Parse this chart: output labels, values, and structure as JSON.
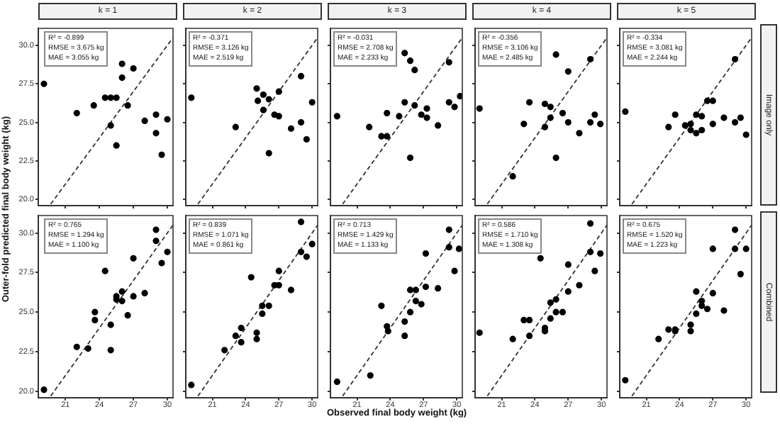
{
  "chart_data": [
    {
      "type": "scatter",
      "title": "k = 1",
      "xlim": [
        18.6,
        30.5
      ],
      "ylim": [
        19.6,
        31.1
      ],
      "xticks": [
        21,
        24,
        27,
        30
      ],
      "yticks": [
        {
          "value": 20,
          "label": "20.0"
        },
        22.5,
        {
          "value": 25,
          "label": "25.0"
        },
        27.5,
        {
          "value": 30,
          "label": "30.0"
        }
      ],
      "tick_labels": "y",
      "annotations": [
        "R² = -0.899",
        "RMSE = 3.675 kg",
        "MAE = 3.055 kg"
      ],
      "series": [
        {
          "type": "scatter",
          "marker": "circle",
          "color": "#000000",
          "x": [
            19.1,
            22.0,
            23.5,
            24.5,
            25.0,
            25.5,
            25.0,
            25.5,
            26.0,
            26.0,
            26.5,
            27.0,
            28.0,
            29.0,
            29.0,
            29.5,
            30.0
          ],
          "values": [
            27.5,
            25.6,
            26.1,
            26.6,
            26.6,
            26.6,
            24.8,
            23.5,
            27.9,
            28.8,
            26.1,
            28.5,
            25.1,
            25.5,
            24.3,
            22.9,
            25.2
          ]
        },
        {
          "type": "line",
          "color": "#333333",
          "line_style": "dashed",
          "x": [
            19.7,
            30.5
          ],
          "values": [
            19.7,
            30.5
          ]
        }
      ]
    },
    {
      "type": "scatter",
      "title": "k = 2",
      "xlim": [
        18.6,
        30.5
      ],
      "ylim": [
        19.6,
        31.1
      ],
      "xticks": [
        21,
        24,
        27,
        30
      ],
      "yticks": [
        20,
        22.5,
        25,
        27.5,
        30
      ],
      "tick_labels": false,
      "annotations": [
        "R² = -0.371",
        "RMSE = 3.126 kg",
        "MAE = 2.519 kg"
      ],
      "series": [
        {
          "type": "scatter",
          "marker": "circle",
          "color": "#000000",
          "x": [
            19.1,
            23.1,
            25.0,
            25.1,
            25.6,
            25.6,
            26.1,
            26.1,
            26.6,
            27.0,
            27.0,
            28.1,
            29.0,
            29.0,
            29.5,
            30.0
          ],
          "values": [
            26.6,
            24.7,
            27.2,
            26.4,
            26.8,
            25.8,
            26.5,
            23.0,
            25.5,
            27.0,
            25.4,
            24.6,
            28.0,
            25.0,
            23.9,
            26.3
          ]
        },
        {
          "type": "line",
          "color": "#333333",
          "line_style": "dashed",
          "x": [
            19.7,
            30.5
          ],
          "values": [
            19.7,
            30.5
          ]
        }
      ]
    },
    {
      "type": "scatter",
      "title": "k = 3",
      "xlim": [
        18.6,
        30.5
      ],
      "ylim": [
        19.6,
        31.1
      ],
      "xticks": [
        21,
        24,
        27,
        30
      ],
      "yticks": [
        20,
        22.5,
        25,
        27.5,
        30
      ],
      "tick_labels": false,
      "annotations": [
        "R² = -0.031",
        "RMSE = 2.708 kg",
        "MAE = 2.233 kg"
      ],
      "series": [
        {
          "type": "scatter",
          "marker": "circle",
          "color": "#000000",
          "x": [
            19.2,
            22.1,
            23.2,
            23.7,
            23.7,
            24.8,
            25.3,
            25.3,
            25.8,
            25.8,
            26.2,
            26.2,
            26.8,
            27.3,
            27.3,
            28.3,
            29.3,
            29.3,
            29.8,
            30.3
          ],
          "values": [
            25.4,
            24.7,
            24.1,
            24.1,
            25.6,
            25.4,
            26.3,
            29.5,
            29.0,
            22.7,
            28.4,
            26.1,
            25.5,
            25.9,
            25.3,
            24.8,
            28.9,
            26.3,
            26.0,
            26.7
          ]
        },
        {
          "type": "line",
          "color": "#333333",
          "line_style": "dashed",
          "x": [
            19.7,
            30.5
          ],
          "values": [
            19.7,
            30.5
          ]
        }
      ]
    },
    {
      "type": "scatter",
      "title": "k = 4",
      "xlim": [
        18.6,
        30.5
      ],
      "ylim": [
        19.6,
        31.1
      ],
      "xticks": [
        21,
        24,
        27,
        30
      ],
      "yticks": [
        20,
        22.5,
        25,
        27.5,
        30
      ],
      "tick_labels": false,
      "annotations": [
        "R² = -0.356",
        "RMSE = 3.106 kg",
        "MAE = 2.485 kg"
      ],
      "series": [
        {
          "type": "scatter",
          "marker": "circle",
          "color": "#000000",
          "x": [
            19.0,
            22.0,
            23.0,
            23.5,
            24.9,
            24.9,
            25.4,
            25.4,
            25.9,
            25.9,
            26.5,
            27.0,
            27.0,
            28.0,
            29.0,
            29.0,
            29.4,
            29.9
          ],
          "values": [
            25.9,
            21.5,
            24.9,
            26.3,
            26.2,
            24.7,
            26.0,
            25.3,
            29.4,
            22.7,
            25.6,
            28.3,
            25.0,
            24.3,
            25.0,
            29.1,
            25.5,
            24.9
          ]
        },
        {
          "type": "line",
          "color": "#333333",
          "line_style": "dashed",
          "x": [
            19.7,
            30.5
          ],
          "values": [
            19.7,
            30.5
          ]
        }
      ]
    },
    {
      "type": "scatter",
      "title": "k = 5",
      "xlim": [
        18.6,
        30.5
      ],
      "ylim": [
        19.6,
        31.1
      ],
      "xticks": [
        21,
        24,
        27,
        30
      ],
      "yticks": [
        20,
        22.5,
        25,
        27.5,
        30
      ],
      "tick_labels": false,
      "annotations": [
        "R² = -0.334",
        "RMSE = 3.081 kg",
        "MAE = 2.244 kg",
        "Image only"
      ],
      "series": [
        {
          "type": "scatter",
          "marker": "circle",
          "color": "#000000",
          "x": [
            19.1,
            23.0,
            23.6,
            24.5,
            25.0,
            25.0,
            25.5,
            25.5,
            26.0,
            26.0,
            26.5,
            27.0,
            27.0,
            28.0,
            29.0,
            29.0,
            29.5,
            30.0
          ],
          "values": [
            25.7,
            24.7,
            25.5,
            24.8,
            24.9,
            24.5,
            25.5,
            24.3,
            25.4,
            24.5,
            26.4,
            26.4,
            24.9,
            25.3,
            25.0,
            29.1,
            25.3,
            24.2
          ]
        },
        {
          "type": "line",
          "color": "#333333",
          "line_style": "dashed",
          "x": [
            19.7,
            30.5
          ],
          "values": [
            19.7,
            30.5
          ]
        }
      ]
    },
    {
      "type": "scatter",
      "xlim": [
        18.6,
        30.5
      ],
      "ylim": [
        19.6,
        31.1
      ],
      "xticks": [
        21,
        24,
        27,
        30
      ],
      "yticks": [
        {
          "value": 20,
          "label": "20.0"
        },
        22.5,
        {
          "value": 25,
          "label": "25.0"
        },
        27.5,
        {
          "value": 30,
          "label": "30.0"
        }
      ],
      "ylabel": "Outer-fold predicted final body weight (kg)",
      "annotations": [
        "R² = 0.765",
        "RMSE = 1.294 kg",
        "MAE = 1.100 kg"
      ],
      "series": [
        {
          "type": "scatter",
          "marker": "circle",
          "color": "#000000",
          "x": [
            19.1,
            22.0,
            23.0,
            23.6,
            23.6,
            24.5,
            25.0,
            25.0,
            25.5,
            25.5,
            26.0,
            26.0,
            26.5,
            27.0,
            27.0,
            28.0,
            29.0,
            29.0,
            29.5,
            30.0
          ],
          "values": [
            20.1,
            22.8,
            22.7,
            24.5,
            25.0,
            27.6,
            24.2,
            22.6,
            26.0,
            25.8,
            25.7,
            26.3,
            24.8,
            28.4,
            26.0,
            26.2,
            30.2,
            29.5,
            28.1,
            28.8
          ]
        },
        {
          "type": "line",
          "color": "#333333",
          "line_style": "dashed",
          "x": [
            19.7,
            30.5
          ],
          "values": [
            19.7,
            30.5
          ]
        }
      ]
    },
    {
      "type": "scatter",
      "xlim": [
        18.6,
        30.5
      ],
      "ylim": [
        19.6,
        31.1
      ],
      "xticks": [
        21,
        24,
        27,
        30
      ],
      "yticks": [
        20,
        22.5,
        25,
        27.5,
        30
      ],
      "tick_labels": "x",
      "annotations": [
        "R² = 0.839",
        "RMSE = 1.071 kg",
        "MAE = 0.861 kg"
      ],
      "series": [
        {
          "type": "scatter",
          "marker": "circle",
          "color": "#000000",
          "x": [
            19.1,
            22.1,
            23.1,
            23.6,
            23.6,
            24.5,
            25.0,
            25.0,
            25.5,
            25.5,
            26.1,
            26.6,
            27.0,
            27.0,
            28.1,
            29.0,
            29.0,
            29.5,
            30.0
          ],
          "values": [
            20.4,
            22.6,
            23.5,
            24.0,
            23.1,
            27.2,
            23.7,
            23.3,
            24.9,
            25.4,
            25.4,
            26.7,
            27.6,
            26.7,
            26.4,
            30.7,
            28.8,
            28.5,
            29.3
          ]
        },
        {
          "type": "line",
          "color": "#333333",
          "line_style": "dashed",
          "x": [
            19.7,
            30.5
          ],
          "values": [
            19.7,
            30.5
          ]
        }
      ]
    },
    {
      "type": "scatter",
      "xlim": [
        18.6,
        30.5
      ],
      "ylim": [
        19.6,
        31.1
      ],
      "xticks": [
        21,
        24,
        27,
        30
      ],
      "yticks": [
        20,
        22.5,
        25,
        27.5,
        30
      ],
      "tick_labels": "x",
      "xlabel": "Observed final body weight (kg)",
      "annotations": [
        "R² = 0.713",
        "RMSE = 1.429 kg",
        "MAE = 1.133 kg"
      ],
      "series": [
        {
          "type": "scatter",
          "marker": "circle",
          "color": "#000000",
          "x": [
            19.2,
            22.2,
            23.2,
            23.7,
            23.8,
            25.3,
            25.3,
            25.8,
            25.8,
            26.3,
            26.3,
            26.8,
            27.2,
            27.2,
            28.3,
            29.3,
            29.3,
            29.8,
            30.2
          ],
          "values": [
            20.6,
            21.0,
            25.4,
            24.1,
            23.8,
            24.4,
            23.5,
            25.0,
            26.4,
            26.4,
            25.7,
            25.5,
            28.7,
            26.6,
            26.5,
            30.2,
            29.1,
            27.6,
            29.0
          ]
        },
        {
          "type": "line",
          "color": "#333333",
          "line_style": "dashed",
          "x": [
            19.7,
            30.5
          ],
          "values": [
            19.7,
            30.5
          ]
        }
      ]
    },
    {
      "type": "scatter",
      "xlim": [
        18.6,
        30.5
      ],
      "ylim": [
        19.6,
        31.1
      ],
      "xticks": [
        21,
        24,
        27,
        30
      ],
      "yticks": [
        20,
        22.5,
        25,
        27.5,
        30
      ],
      "tick_labels": "x",
      "annotations": [
        "R² = 0.586",
        "RMSE = 1.710 kg",
        "MAE = 1.308 kg"
      ],
      "series": [
        {
          "type": "scatter",
          "marker": "circle",
          "color": "#000000",
          "x": [
            19.0,
            22.0,
            23.0,
            23.5,
            23.5,
            24.5,
            24.9,
            24.9,
            25.4,
            25.4,
            25.9,
            25.9,
            26.5,
            27.0,
            27.0,
            28.0,
            29.0,
            29.0,
            29.4,
            29.9
          ],
          "values": [
            23.7,
            23.3,
            24.5,
            24.5,
            23.5,
            28.4,
            24.0,
            23.8,
            24.6,
            25.6,
            25.8,
            25.0,
            25.0,
            28.0,
            26.3,
            26.7,
            30.6,
            28.8,
            27.6,
            28.7
          ]
        },
        {
          "type": "line",
          "color": "#333333",
          "line_style": "dashed",
          "x": [
            19.7,
            30.5
          ],
          "values": [
            19.7,
            30.5
          ]
        }
      ]
    },
    {
      "type": "scatter",
      "xlim": [
        18.6,
        30.5
      ],
      "ylim": [
        19.6,
        31.1
      ],
      "xticks": [
        21,
        24,
        27,
        30
      ],
      "yticks": [
        20,
        22.5,
        25,
        27.5,
        30
      ],
      "tick_labels": "x",
      "annotations": [
        "R² = 0.675",
        "RMSE = 1.520 kg",
        "MAE = 1.223 kg",
        "Combined"
      ],
      "series": [
        {
          "type": "scatter",
          "marker": "circle",
          "color": "#000000",
          "x": [
            19.1,
            22.1,
            23.0,
            23.6,
            23.6,
            25.0,
            25.0,
            25.5,
            25.5,
            26.0,
            26.0,
            26.5,
            27.0,
            27.0,
            28.0,
            29.0,
            29.0,
            29.5,
            30.0
          ],
          "values": [
            20.7,
            23.3,
            23.9,
            23.9,
            23.8,
            24.2,
            23.8,
            24.9,
            26.3,
            25.7,
            25.4,
            25.2,
            29.0,
            26.2,
            25.1,
            30.2,
            29.0,
            27.4,
            29.0
          ]
        },
        {
          "type": "line",
          "color": "#333333",
          "line_style": "dashed",
          "x": [
            19.7,
            30.5
          ],
          "values": [
            19.7,
            30.5
          ]
        }
      ]
    }
  ]
}
